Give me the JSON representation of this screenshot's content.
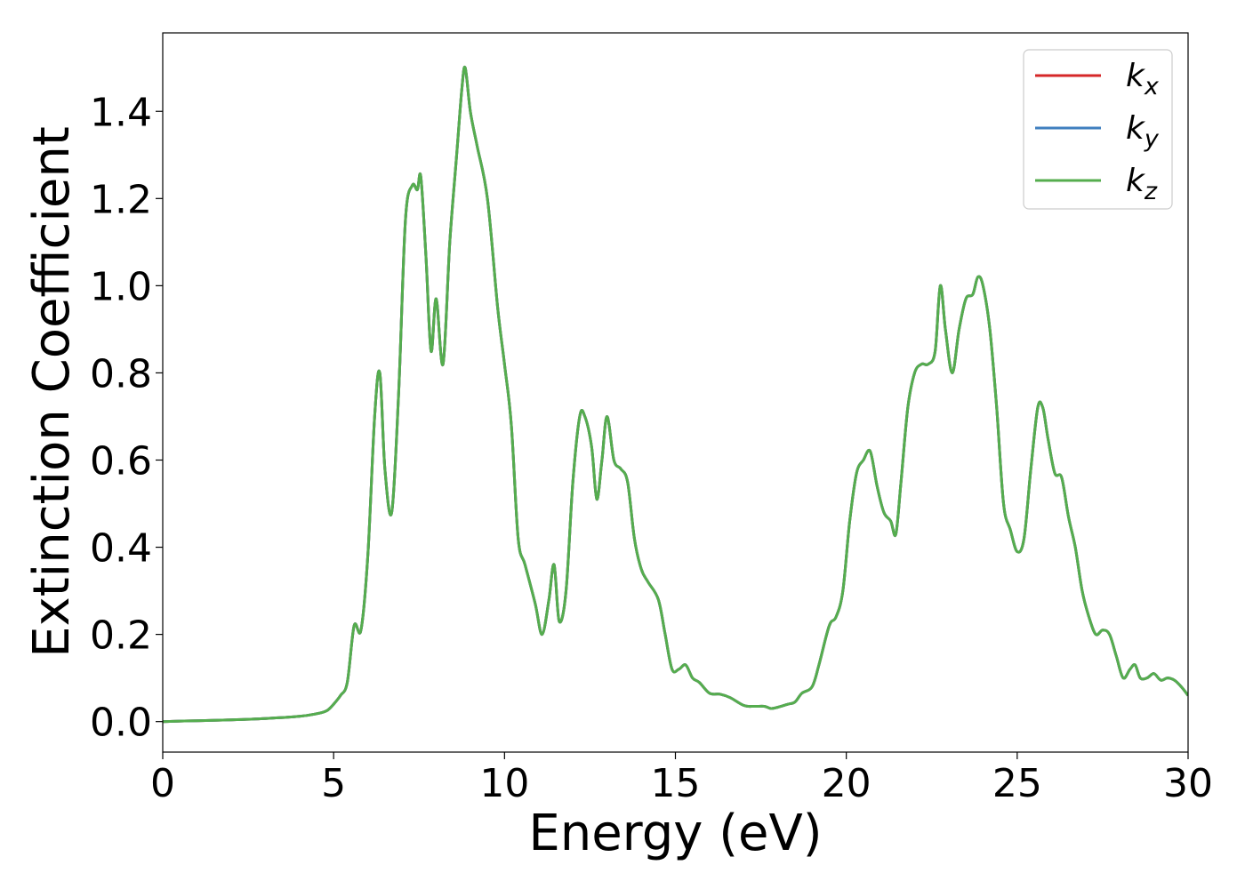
{
  "chart_data": {
    "type": "line",
    "title": "",
    "xlabel": "Energy (eV)",
    "ylabel": "Extinction Coefficient",
    "xlim": [
      0,
      30
    ],
    "ylim": [
      -0.07,
      1.58
    ],
    "xticks": [
      0,
      5,
      10,
      15,
      20,
      25,
      30
    ],
    "xtick_labels": [
      "0",
      "5",
      "10",
      "15",
      "20",
      "25",
      "30"
    ],
    "yticks": [
      0.0,
      0.2,
      0.4,
      0.6,
      0.8,
      1.0,
      1.2,
      1.4
    ],
    "ytick_labels": [
      "0.0",
      "0.2",
      "0.4",
      "0.6",
      "0.8",
      "1.0",
      "1.2",
      "1.4"
    ],
    "grid": false,
    "legend_position": "top-right",
    "legend": [
      {
        "base": "k",
        "sub": "x",
        "color": "#d62728"
      },
      {
        "base": "k",
        "sub": "y",
        "color": "#3f7fbf"
      },
      {
        "base": "k",
        "sub": "z",
        "color": "#55ad4e"
      }
    ],
    "x": [
      0,
      1,
      2,
      3,
      4,
      4.5,
      4.8,
      5.0,
      5.2,
      5.4,
      5.6,
      5.8,
      6.0,
      6.2,
      6.35,
      6.5,
      6.7,
      6.9,
      7.1,
      7.3,
      7.45,
      7.55,
      7.7,
      7.85,
      8.0,
      8.2,
      8.4,
      8.6,
      8.75,
      8.85,
      9.0,
      9.2,
      9.5,
      9.8,
      10.0,
      10.2,
      10.4,
      10.6,
      10.9,
      11.1,
      11.3,
      11.45,
      11.6,
      11.8,
      12.0,
      12.2,
      12.35,
      12.55,
      12.7,
      12.85,
      13.0,
      13.2,
      13.4,
      13.6,
      13.8,
      14.0,
      14.2,
      14.5,
      14.7,
      14.9,
      15.1,
      15.3,
      15.5,
      15.7,
      16.0,
      16.3,
      16.6,
      17.0,
      17.3,
      17.6,
      17.8,
      18.0,
      18.3,
      18.5,
      18.7,
      19.0,
      19.2,
      19.5,
      19.7,
      19.9,
      20.1,
      20.3,
      20.5,
      20.7,
      20.9,
      21.1,
      21.3,
      21.45,
      21.6,
      21.8,
      22.0,
      22.2,
      22.4,
      22.6,
      22.75,
      22.9,
      23.1,
      23.3,
      23.5,
      23.7,
      23.85,
      24.0,
      24.2,
      24.4,
      24.6,
      24.8,
      25.0,
      25.2,
      25.4,
      25.6,
      25.75,
      25.9,
      26.1,
      26.3,
      26.5,
      26.7,
      26.9,
      27.1,
      27.3,
      27.5,
      27.7,
      27.9,
      28.1,
      28.3,
      28.45,
      28.6,
      28.8,
      29.0,
      29.2,
      29.4,
      29.6,
      29.8,
      30.0
    ],
    "series": [
      {
        "name": "k_x",
        "color": "#d62728",
        "values": [
          0.0,
          0.002,
          0.004,
          0.007,
          0.012,
          0.018,
          0.025,
          0.04,
          0.06,
          0.09,
          0.22,
          0.21,
          0.38,
          0.7,
          0.8,
          0.58,
          0.48,
          0.75,
          1.15,
          1.23,
          1.22,
          1.25,
          1.07,
          0.85,
          0.97,
          0.82,
          1.1,
          1.3,
          1.45,
          1.5,
          1.4,
          1.32,
          1.2,
          0.95,
          0.82,
          0.68,
          0.42,
          0.36,
          0.27,
          0.2,
          0.28,
          0.36,
          0.23,
          0.3,
          0.55,
          0.7,
          0.7,
          0.63,
          0.51,
          0.6,
          0.7,
          0.6,
          0.58,
          0.55,
          0.42,
          0.35,
          0.32,
          0.28,
          0.2,
          0.12,
          0.12,
          0.13,
          0.1,
          0.09,
          0.065,
          0.063,
          0.055,
          0.037,
          0.035,
          0.035,
          0.03,
          0.033,
          0.04,
          0.045,
          0.065,
          0.08,
          0.13,
          0.22,
          0.24,
          0.3,
          0.46,
          0.57,
          0.6,
          0.62,
          0.54,
          0.48,
          0.46,
          0.43,
          0.55,
          0.72,
          0.8,
          0.82,
          0.82,
          0.85,
          1.0,
          0.9,
          0.8,
          0.9,
          0.97,
          0.98,
          1.02,
          1.0,
          0.9,
          0.72,
          0.5,
          0.44,
          0.39,
          0.42,
          0.58,
          0.72,
          0.72,
          0.65,
          0.57,
          0.56,
          0.47,
          0.4,
          0.3,
          0.24,
          0.2,
          0.21,
          0.2,
          0.15,
          0.1,
          0.12,
          0.13,
          0.1,
          0.1,
          0.11,
          0.095,
          0.1,
          0.095,
          0.08,
          0.06
        ]
      },
      {
        "name": "k_y",
        "color": "#3f7fbf",
        "values": [
          0.0,
          0.002,
          0.004,
          0.007,
          0.012,
          0.018,
          0.025,
          0.04,
          0.06,
          0.09,
          0.22,
          0.21,
          0.38,
          0.7,
          0.8,
          0.58,
          0.48,
          0.75,
          1.15,
          1.23,
          1.22,
          1.25,
          1.07,
          0.85,
          0.97,
          0.82,
          1.1,
          1.3,
          1.45,
          1.5,
          1.4,
          1.32,
          1.2,
          0.95,
          0.82,
          0.68,
          0.42,
          0.36,
          0.27,
          0.2,
          0.28,
          0.36,
          0.23,
          0.3,
          0.55,
          0.7,
          0.7,
          0.63,
          0.51,
          0.6,
          0.7,
          0.6,
          0.58,
          0.55,
          0.42,
          0.35,
          0.32,
          0.28,
          0.2,
          0.12,
          0.12,
          0.13,
          0.1,
          0.09,
          0.065,
          0.063,
          0.055,
          0.037,
          0.035,
          0.035,
          0.03,
          0.033,
          0.04,
          0.045,
          0.065,
          0.08,
          0.13,
          0.22,
          0.24,
          0.3,
          0.46,
          0.57,
          0.6,
          0.62,
          0.54,
          0.48,
          0.46,
          0.43,
          0.55,
          0.72,
          0.8,
          0.82,
          0.82,
          0.85,
          1.0,
          0.9,
          0.8,
          0.9,
          0.97,
          0.98,
          1.02,
          1.0,
          0.9,
          0.72,
          0.5,
          0.44,
          0.39,
          0.42,
          0.58,
          0.72,
          0.72,
          0.65,
          0.57,
          0.56,
          0.47,
          0.4,
          0.3,
          0.24,
          0.2,
          0.21,
          0.2,
          0.15,
          0.1,
          0.12,
          0.13,
          0.1,
          0.1,
          0.11,
          0.095,
          0.1,
          0.095,
          0.08,
          0.06
        ]
      },
      {
        "name": "k_z",
        "color": "#55ad4e",
        "values": [
          0.0,
          0.002,
          0.004,
          0.007,
          0.012,
          0.018,
          0.025,
          0.04,
          0.06,
          0.09,
          0.22,
          0.21,
          0.38,
          0.7,
          0.8,
          0.58,
          0.48,
          0.75,
          1.15,
          1.23,
          1.22,
          1.25,
          1.07,
          0.85,
          0.97,
          0.82,
          1.1,
          1.3,
          1.45,
          1.5,
          1.4,
          1.32,
          1.2,
          0.95,
          0.82,
          0.68,
          0.42,
          0.36,
          0.27,
          0.2,
          0.28,
          0.36,
          0.23,
          0.3,
          0.55,
          0.7,
          0.7,
          0.63,
          0.51,
          0.6,
          0.7,
          0.6,
          0.58,
          0.55,
          0.42,
          0.35,
          0.32,
          0.28,
          0.2,
          0.12,
          0.12,
          0.13,
          0.1,
          0.09,
          0.065,
          0.063,
          0.055,
          0.037,
          0.035,
          0.035,
          0.03,
          0.033,
          0.04,
          0.045,
          0.065,
          0.08,
          0.13,
          0.22,
          0.24,
          0.3,
          0.46,
          0.57,
          0.6,
          0.62,
          0.54,
          0.48,
          0.46,
          0.43,
          0.55,
          0.72,
          0.8,
          0.82,
          0.82,
          0.85,
          1.0,
          0.9,
          0.8,
          0.9,
          0.97,
          0.98,
          1.02,
          1.0,
          0.9,
          0.72,
          0.5,
          0.44,
          0.39,
          0.42,
          0.58,
          0.72,
          0.72,
          0.65,
          0.57,
          0.56,
          0.47,
          0.4,
          0.3,
          0.24,
          0.2,
          0.21,
          0.2,
          0.15,
          0.1,
          0.12,
          0.13,
          0.1,
          0.1,
          0.11,
          0.095,
          0.1,
          0.095,
          0.08,
          0.06
        ]
      }
    ]
  }
}
